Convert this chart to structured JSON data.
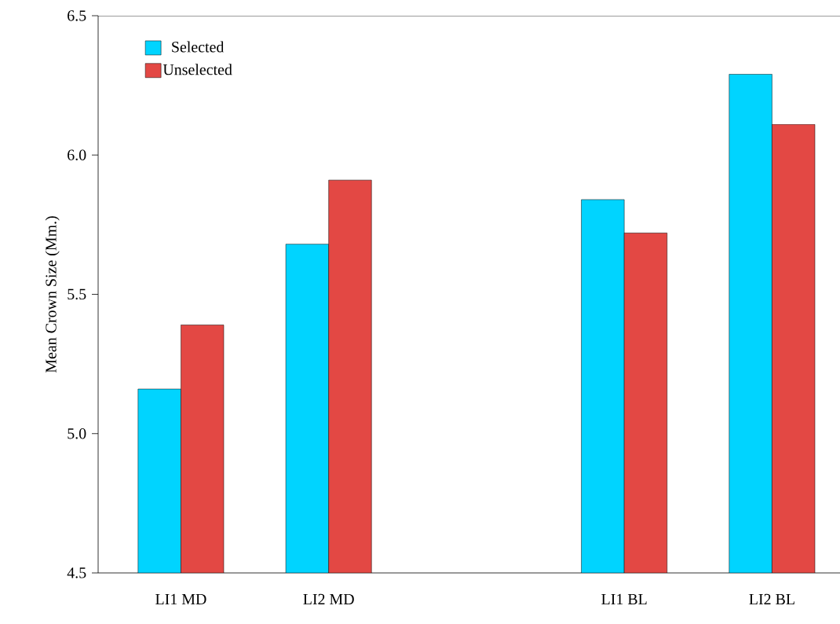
{
  "chart_data": {
    "type": "bar",
    "ylabel": "Mean Crown Size (Mm.)",
    "categories": [
      "LI1 MD",
      "LI2 MD",
      null,
      "LI1 BL",
      "LI2 BL"
    ],
    "series": [
      {
        "name": "Selected",
        "color": "#00d4ff",
        "values": [
          5.16,
          5.68,
          null,
          5.84,
          6.29
        ]
      },
      {
        "name": "Unselected",
        "color": "#e34844",
        "values": [
          5.39,
          5.91,
          null,
          5.72,
          6.11
        ]
      }
    ],
    "ylim": [
      4.5,
      6.5
    ],
    "yticks": [
      4.5,
      {
        "value": 5,
        "label": "5.0"
      },
      5.5,
      {
        "value": 6,
        "label": "6.0"
      },
      6.5
    ],
    "legend": "top left"
  }
}
